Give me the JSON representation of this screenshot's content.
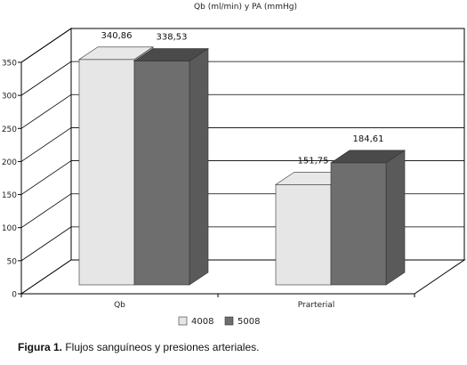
{
  "chart_data": {
    "type": "bar",
    "title": "Qb (ml/min) y PA (mmHg)",
    "categories": [
      "Qb",
      "Prarterial"
    ],
    "series": [
      {
        "name": "4008",
        "values": [
          340.86,
          151.75
        ],
        "labels": [
          "340,86",
          "151,75"
        ],
        "color": "#e6e6e6"
      },
      {
        "name": "5008",
        "values": [
          338.53,
          184.61
        ],
        "labels": [
          "338,53",
          "184,61"
        ],
        "color": "#6e6e6e"
      }
    ],
    "y_ticks": [
      "0",
      "50",
      "100",
      "150",
      "200",
      "250",
      "300",
      "350"
    ],
    "ylim": [
      0,
      350
    ],
    "grid": true,
    "legend_position": "bottom",
    "style": "3d"
  },
  "caption": {
    "label": "Figura 1.",
    "text": " Flujos sanguíneos y presiones arteriales."
  }
}
